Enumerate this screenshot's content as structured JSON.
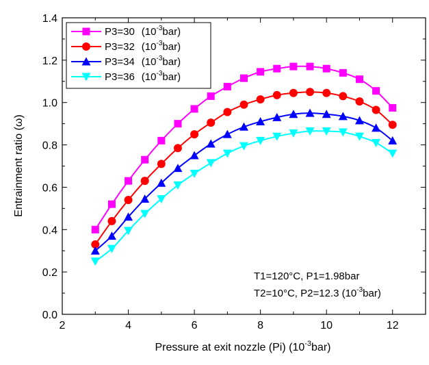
{
  "chart_data": {
    "type": "line",
    "xlabel_main": "Pressure at exit nozzle (Pi) (10",
    "xlabel_sup": "-3",
    "xlabel_tail": "bar)",
    "ylabel": "Entrainment ratio  (ω)",
    "xlim": [
      2,
      13
    ],
    "ylim": [
      0,
      1.4
    ],
    "xticks": [
      "2",
      "4",
      "6",
      "8",
      "10",
      "12"
    ],
    "yticks": [
      "0.0",
      "0.2",
      "0.4",
      "0.6",
      "0.8",
      "1.0",
      "1.2",
      "1.4"
    ],
    "grid": false,
    "legend_position": "top-left",
    "x": [
      3,
      3.5,
      4,
      4.5,
      5,
      5.5,
      6,
      6.5,
      7,
      7.5,
      8,
      8.5,
      9,
      9.5,
      10,
      10.5,
      11,
      11.5,
      12
    ],
    "series": [
      {
        "name": "P3=30",
        "unit_main": "(10",
        "unit_sup": "-3",
        "unit_tail": "bar)",
        "color": "#ff00ff",
        "marker": "square",
        "values": [
          0.4,
          0.52,
          0.63,
          0.73,
          0.82,
          0.9,
          0.97,
          1.03,
          1.075,
          1.115,
          1.145,
          1.16,
          1.17,
          1.17,
          1.16,
          1.14,
          1.11,
          1.055,
          0.975
        ]
      },
      {
        "name": "P3=32",
        "unit_main": "(10",
        "unit_sup": "-3",
        "unit_tail": "bar)",
        "color": "#ff0000",
        "marker": "circle",
        "values": [
          0.33,
          0.44,
          0.54,
          0.63,
          0.71,
          0.785,
          0.85,
          0.905,
          0.955,
          0.99,
          1.015,
          1.035,
          1.045,
          1.05,
          1.045,
          1.03,
          1.005,
          0.965,
          0.895
        ]
      },
      {
        "name": "P3=34",
        "unit_main": "(10",
        "unit_sup": "-3",
        "unit_tail": "bar)",
        "color": "#0000ff",
        "marker": "triangle-up",
        "values": [
          0.3,
          0.37,
          0.46,
          0.545,
          0.62,
          0.69,
          0.75,
          0.805,
          0.85,
          0.885,
          0.91,
          0.93,
          0.945,
          0.95,
          0.945,
          0.935,
          0.915,
          0.88,
          0.82
        ]
      },
      {
        "name": "P3=36",
        "unit_main": "(10",
        "unit_sup": "-3",
        "unit_tail": "bar)",
        "color": "#00ffff",
        "marker": "triangle-down",
        "values": [
          0.25,
          0.31,
          0.395,
          0.475,
          0.545,
          0.61,
          0.665,
          0.715,
          0.76,
          0.795,
          0.82,
          0.84,
          0.855,
          0.865,
          0.865,
          0.86,
          0.84,
          0.81,
          0.76
        ]
      }
    ],
    "annotations": {
      "line1": "T1=120°C, P1=1.98bar",
      "line2_main": "T2=10°C, P2=12.3 (10",
      "line2_sup": "-3",
      "line2_tail": "bar)"
    }
  }
}
